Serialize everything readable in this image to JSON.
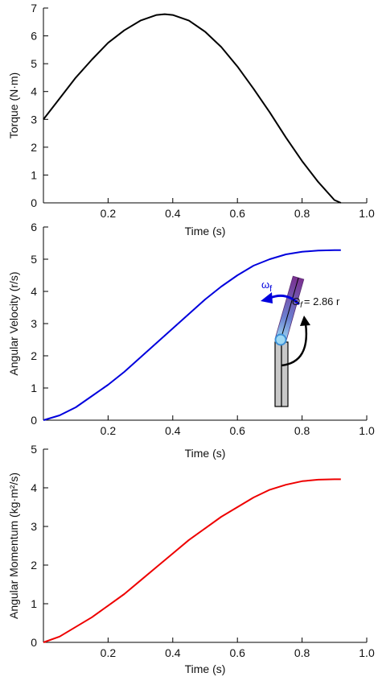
{
  "chart_data": [
    {
      "type": "line",
      "xlabel": "Time (s)",
      "ylabel": "Torque (N·m)",
      "xlim": [
        0,
        1.0
      ],
      "ylim": [
        0,
        7
      ],
      "xticks": [
        0.2,
        0.4,
        0.6,
        0.8,
        1.0
      ],
      "xtick_labels": [
        "0.2",
        "0.4",
        "0.6",
        "0.8",
        "1.0"
      ],
      "yticks": [
        0,
        1,
        2,
        3,
        4,
        5,
        6,
        7
      ],
      "ytick_labels": [
        "0",
        "1",
        "2",
        "3",
        "4",
        "5",
        "6",
        "7"
      ],
      "grid": false,
      "series": [
        {
          "color": "#000000",
          "x": [
            0,
            0.05,
            0.1,
            0.15,
            0.2,
            0.25,
            0.3,
            0.35,
            0.375,
            0.4,
            0.45,
            0.5,
            0.55,
            0.6,
            0.65,
            0.7,
            0.75,
            0.8,
            0.85,
            0.9,
            0.92
          ],
          "y": [
            3.0,
            3.75,
            4.5,
            5.15,
            5.75,
            6.2,
            6.55,
            6.75,
            6.78,
            6.75,
            6.55,
            6.15,
            5.6,
            4.9,
            4.1,
            3.25,
            2.35,
            1.5,
            0.75,
            0.1,
            0.0
          ]
        }
      ]
    },
    {
      "type": "line",
      "xlabel": "Time (s)",
      "ylabel": "Angular Velocity (r/s)",
      "xlim": [
        0,
        1.0
      ],
      "ylim": [
        0,
        6
      ],
      "xticks": [
        0.2,
        0.4,
        0.6,
        0.8,
        1.0
      ],
      "xtick_labels": [
        "0.2",
        "0.4",
        "0.6",
        "0.8",
        "1.0"
      ],
      "yticks": [
        0,
        1,
        2,
        3,
        4,
        5,
        6
      ],
      "ytick_labels": [
        "0",
        "1",
        "2",
        "3",
        "4",
        "5",
        "6"
      ],
      "grid": false,
      "series": [
        {
          "color": "#0000dd",
          "x": [
            0,
            0.05,
            0.1,
            0.15,
            0.2,
            0.25,
            0.3,
            0.35,
            0.4,
            0.45,
            0.5,
            0.55,
            0.6,
            0.65,
            0.7,
            0.75,
            0.8,
            0.85,
            0.9,
            0.92
          ],
          "y": [
            0,
            0.15,
            0.4,
            0.75,
            1.1,
            1.5,
            1.95,
            2.4,
            2.85,
            3.3,
            3.75,
            4.15,
            4.5,
            4.8,
            5.0,
            5.15,
            5.23,
            5.27,
            5.28,
            5.28
          ]
        }
      ],
      "annotations": {
        "omega_label": "ω",
        "omega_sub": "f",
        "theta_label": "Θ",
        "theta_sub": "f",
        "theta_value": "= 2.86 r"
      }
    },
    {
      "type": "line",
      "xlabel": "Time (s)",
      "ylabel": "Angular Momentum (kg·m²/s)",
      "xlim": [
        0,
        1.0
      ],
      "ylim": [
        0,
        5
      ],
      "xticks": [
        0.2,
        0.4,
        0.6,
        0.8,
        1.0
      ],
      "xtick_labels": [
        "0.2",
        "0.4",
        "0.6",
        "0.8",
        "1.0"
      ],
      "yticks": [
        0,
        1,
        2,
        3,
        4,
        5
      ],
      "ytick_labels": [
        "0",
        "1",
        "2",
        "3",
        "4",
        "5"
      ],
      "grid": false,
      "series": [
        {
          "color": "#ee0000",
          "x": [
            0,
            0.05,
            0.1,
            0.15,
            0.2,
            0.25,
            0.3,
            0.35,
            0.4,
            0.45,
            0.5,
            0.55,
            0.6,
            0.65,
            0.7,
            0.75,
            0.8,
            0.85,
            0.9,
            0.92
          ],
          "y": [
            0,
            0.15,
            0.4,
            0.65,
            0.95,
            1.25,
            1.6,
            1.95,
            2.3,
            2.65,
            2.95,
            3.25,
            3.5,
            3.75,
            3.95,
            4.08,
            4.17,
            4.21,
            4.22,
            4.22
          ]
        }
      ]
    }
  ]
}
